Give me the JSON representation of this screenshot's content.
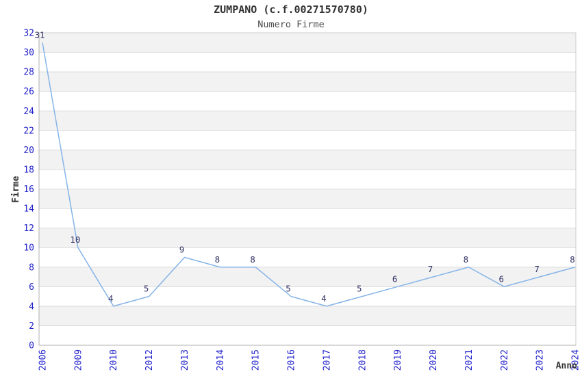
{
  "chart_data": {
    "type": "line",
    "title": "ZUMPANO (c.f.00271570780)",
    "subtitle": "Numero Firme",
    "xlabel": "Anno",
    "ylabel": "Firme",
    "categories": [
      "2006",
      "2009",
      "2010",
      "2012",
      "2013",
      "2014",
      "2015",
      "2016",
      "2017",
      "2018",
      "2019",
      "2020",
      "2021",
      "2022",
      "2023",
      "2024"
    ],
    "values": [
      31,
      10,
      4,
      5,
      9,
      8,
      8,
      5,
      4,
      5,
      6,
      7,
      8,
      6,
      7,
      8
    ],
    "ylim": [
      0,
      32
    ],
    "ytick_step": 2,
    "grid": "horizontal",
    "plot_bands": "alternating every 2 units",
    "legend": "none",
    "markers": "none",
    "data_labels_shown": true,
    "colors": {
      "line": "#85b4e8",
      "data_label": "#333366",
      "tick_label": "#2222cc",
      "band_fill": "#f2f2f2",
      "grid_line": "#d9d9d9",
      "axis_line": "#b0b0b0",
      "frame_line": "#cccccc",
      "title_text": "#333333",
      "background": "#ffffff"
    }
  }
}
